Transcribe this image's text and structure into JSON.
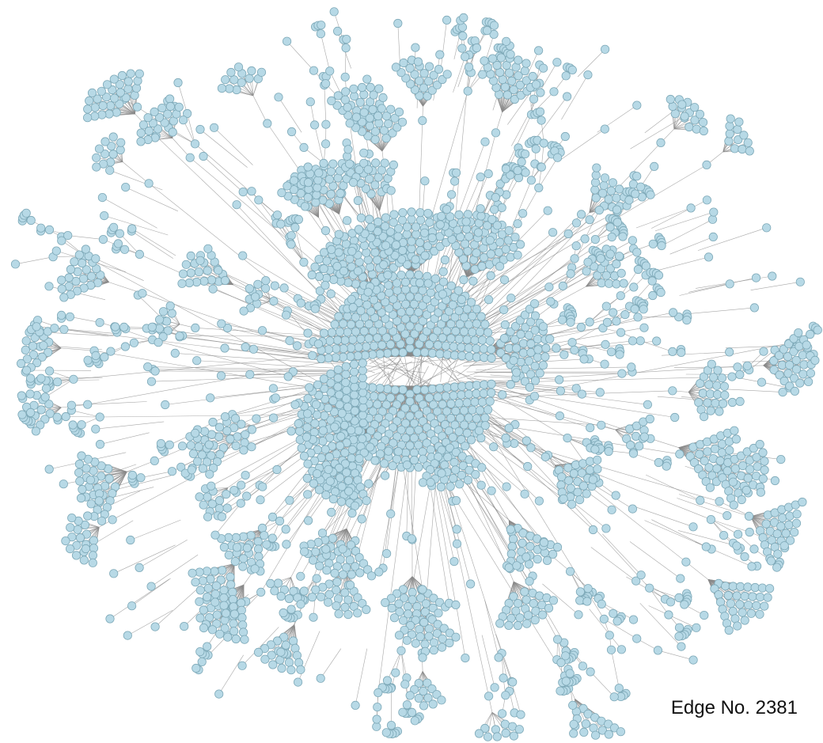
{
  "diagram": {
    "type": "network-graph",
    "layout": "radial",
    "node_fill_color": "#b7d9e6",
    "node_stroke_color": "#7ea9b8",
    "edge_color": "#8a8a8a",
    "background_color": "#ffffff",
    "edge_count_label": "Edge No. 2381",
    "edge_count": 2381
  }
}
